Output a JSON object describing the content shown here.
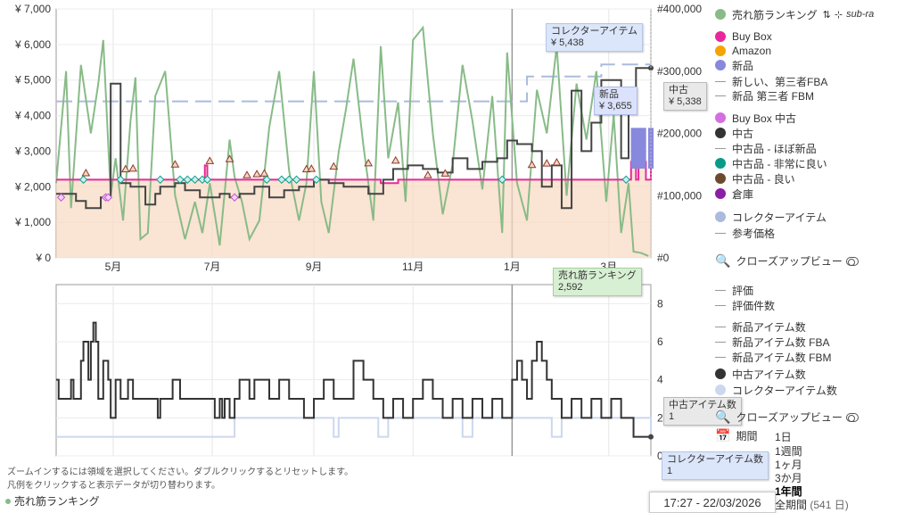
{
  "chart_data": [
    {
      "type": "line",
      "yaxis_left": {
        "ticks": [
          "¥ 0",
          "¥ 1,000",
          "¥ 2,000",
          "¥ 3,000",
          "¥ 4,000",
          "¥ 5,000",
          "¥ 6,000",
          "¥ 7,000"
        ],
        "range": [
          0,
          7000
        ]
      },
      "yaxis_right": {
        "ticks": [
          "#0",
          "#100,000",
          "#200,000",
          "#300,000",
          "#400,000"
        ],
        "range": [
          0,
          400000
        ]
      },
      "xaxis": {
        "ticks": [
          "5月",
          "7月",
          "9月",
          "11月",
          "1月",
          "3月"
        ],
        "range": [
          0,
          12.0
        ]
      },
      "tick_positions": [
        1.15,
        3.15,
        5.2,
        7.2,
        9.2,
        11.15
      ],
      "series": [
        {
          "name": "売れ筋ランキング",
          "color": "#88bb88",
          "axis": "right",
          "x": [
            0,
            0.2,
            0.3,
            0.5,
            0.7,
            0.85,
            0.95,
            1.1,
            1.2,
            1.35,
            1.5,
            1.6,
            1.7,
            1.85,
            2.0,
            2.2,
            2.4,
            2.6,
            2.8,
            2.95,
            3.1,
            3.3,
            3.5,
            3.6,
            3.75,
            3.9,
            4.1,
            4.3,
            4.5,
            4.7,
            4.9,
            5.05,
            5.2,
            5.35,
            5.5,
            5.7,
            5.85,
            6.0,
            6.2,
            6.4,
            6.55,
            6.7,
            6.9,
            7.05,
            7.2,
            7.4,
            7.6,
            7.8,
            8.0,
            8.2,
            8.4,
            8.6,
            8.8,
            9.0,
            9.1,
            9.3,
            9.5,
            9.7,
            9.9,
            10.1,
            10.3,
            10.5,
            10.7,
            10.9,
            11.1,
            11.25,
            11.4,
            11.55,
            11.65,
            11.8,
            11.95
          ],
          "y": [
            120000,
            300000,
            80000,
            310000,
            200000,
            280000,
            350000,
            100000,
            160000,
            60000,
            220000,
            290000,
            30000,
            40000,
            260000,
            300000,
            100000,
            30000,
            90000,
            40000,
            120000,
            20000,
            190000,
            130000,
            90000,
            30000,
            60000,
            210000,
            300000,
            140000,
            60000,
            120000,
            300000,
            90000,
            40000,
            170000,
            240000,
            320000,
            180000,
            60000,
            340000,
            160000,
            250000,
            90000,
            350000,
            370000,
            200000,
            70000,
            150000,
            310000,
            220000,
            110000,
            260000,
            40000,
            330000,
            120000,
            60000,
            270000,
            200000,
            340000,
            100000,
            280000,
            190000,
            300000,
            90000,
            230000,
            40000,
            120000,
            10000,
            8000,
            3000
          ]
        },
        {
          "name": "Buy Box",
          "color": "#e8289a",
          "axis": "left",
          "x": [
            0,
            2.95,
            3.0,
            3.05,
            3.1,
            6.45,
            6.55,
            6.8,
            6.9,
            11.55,
            11.6,
            11.7,
            11.75,
            11.9,
            12.0
          ],
          "y": [
            2200,
            2200,
            2600,
            2200,
            2200,
            2200,
            2100,
            2100,
            2200,
            2200,
            2700,
            2200,
            2700,
            2200,
            2700
          ]
        },
        {
          "name": "新品",
          "color": "#8888dd",
          "axis": "left",
          "x": [
            11.65,
            11.75,
            11.85,
            12.0
          ],
          "y": [
            3655,
            3655,
            3655,
            3655
          ]
        },
        {
          "name": "中古",
          "color": "#444444",
          "axis": "left",
          "x": [
            0,
            0.4,
            0.6,
            0.9,
            1.1,
            1.3,
            1.5,
            1.8,
            2.0,
            2.1,
            2.4,
            2.6,
            2.9,
            3.3,
            3.5,
            3.7,
            4.0,
            4.3,
            4.6,
            4.9,
            5.2,
            5.5,
            5.8,
            6.1,
            6.3,
            6.6,
            6.8,
            7.1,
            7.4,
            7.7,
            8.0,
            8.3,
            8.6,
            8.9,
            9.1,
            9.3,
            9.6,
            9.8,
            10.0,
            10.2,
            10.4,
            10.6,
            10.8,
            11.0,
            11.2,
            11.4,
            11.55,
            11.7,
            12.0
          ],
          "y": [
            1800,
            1600,
            1400,
            1700,
            4900,
            2100,
            2000,
            1500,
            1800,
            2000,
            2100,
            1900,
            1700,
            1800,
            1700,
            1800,
            2000,
            1700,
            1900,
            2000,
            2200,
            2100,
            2000,
            2000,
            1800,
            2200,
            2500,
            2600,
            2500,
            2400,
            2800,
            2500,
            2700,
            2800,
            3300,
            3200,
            3000,
            2000,
            2600,
            1400,
            4700,
            3000,
            3800,
            5000,
            5000,
            2800,
            4700,
            5338,
            5338
          ]
        },
        {
          "name": "コレクターアイテム",
          "color": "#aabbdd",
          "axis": "left",
          "x": [
            0,
            0.8,
            0.85,
            1.7,
            1.8,
            3.6,
            3.7,
            4.8,
            4.9,
            6.7,
            6.8,
            7.5,
            7.55,
            8.8,
            9.0,
            9.5,
            10.0,
            11.0,
            12.0
          ],
          "y": [
            4400,
            4400,
            4400,
            4400,
            4400,
            4400,
            4400,
            4400,
            4400,
            4400,
            4400,
            4400,
            4400,
            4400,
            4400,
            5100,
            5100,
            5438,
            5438
          ]
        }
      ]
    },
    {
      "type": "line",
      "yaxis": {
        "ticks": [
          "0",
          "2",
          "4",
          "6",
          "8"
        ],
        "range": [
          0,
          9
        ]
      },
      "series": [
        {
          "name": "中古アイテム数",
          "color": "#333333",
          "x": [
            0,
            0.05,
            0.3,
            0.35,
            0.5,
            0.55,
            0.65,
            0.7,
            0.75,
            0.8,
            0.85,
            0.95,
            1.05,
            1.1,
            1.2,
            1.3,
            1.45,
            1.55,
            2.05,
            2.1,
            2.35,
            2.5,
            3.2,
            3.3,
            3.35,
            3.4,
            3.5,
            3.6,
            3.7,
            3.9,
            4.0,
            4.3,
            4.5,
            4.7,
            5.0,
            5.2,
            5.4,
            5.6,
            5.8,
            6.0,
            6.2,
            6.4,
            6.6,
            6.8,
            7.0,
            7.2,
            7.4,
            7.6,
            7.8,
            8.0,
            8.2,
            8.4,
            8.6,
            8.8,
            9.0,
            9.2,
            9.3,
            9.4,
            9.5,
            9.6,
            9.7,
            9.8,
            9.9,
            10.0,
            10.2,
            10.4,
            10.6,
            10.8,
            11.0,
            11.2,
            11.4,
            11.55,
            11.65,
            12.0
          ],
          "y": [
            4,
            3,
            4,
            3,
            5,
            6,
            4,
            6,
            7,
            6,
            3,
            5,
            4,
            2,
            4,
            3,
            4,
            3,
            2,
            3,
            4,
            3,
            2,
            3,
            2,
            3,
            2,
            3,
            4,
            3,
            4,
            3,
            4,
            3,
            2,
            3,
            4,
            3,
            3,
            5,
            4,
            3,
            2,
            3,
            2,
            3,
            4,
            3,
            2,
            3,
            2,
            3,
            2,
            3,
            2,
            4,
            5,
            4,
            3,
            5,
            6,
            5,
            4,
            3,
            2,
            3,
            2,
            3,
            2,
            3,
            2,
            2,
            1,
            1
          ]
        },
        {
          "name": "コレクターアイテム数",
          "color": "#ccd8ee",
          "x": [
            0,
            1.0,
            1.1,
            3.5,
            3.6,
            5.6,
            5.7,
            6.5,
            6.7,
            8.2,
            8.4,
            10.0,
            10.2,
            12.0
          ],
          "y": [
            1,
            1,
            1,
            1,
            2,
            1,
            2,
            1,
            2,
            1,
            2,
            1,
            2,
            1
          ]
        }
      ]
    }
  ],
  "markers": {
    "triangles": [
      0.6,
      1.4,
      1.55,
      2.4,
      3.1,
      3.5,
      3.85,
      4.05,
      4.2,
      5.05,
      5.15,
      5.6,
      6.3,
      6.85,
      7.5,
      7.85,
      9.6,
      9.9,
      10.1
    ],
    "diamonds_teal": [
      0.55,
      1.3,
      2.1,
      2.5,
      2.65,
      2.8,
      2.95,
      3.05,
      4.25,
      4.55,
      4.7,
      4.85,
      5.25,
      9.0,
      11.5
    ],
    "diamonds_purple": [
      0.1,
      1.0,
      1.05,
      3.6
    ]
  },
  "legend": {
    "items": [
      {
        "label": "売れ筋ランキング",
        "color": "#88bb88",
        "style": "dot"
      },
      {
        "label": "Buy Box",
        "color": "#e8289a",
        "style": "dot"
      },
      {
        "label": "Amazon",
        "color": "#f5a300",
        "style": "dot"
      },
      {
        "label": "新品",
        "color": "#8888dd",
        "style": "dot"
      },
      {
        "label": "新しい、第三者FBA",
        "color": "#999999",
        "style": "dash"
      },
      {
        "label": "新品 第三者 FBM",
        "color": "#999999",
        "style": "dash"
      },
      {
        "label": "Buy Box 中古",
        "color": "#d46fe0",
        "style": "dot"
      },
      {
        "label": "中古",
        "color": "#333333",
        "style": "dot"
      },
      {
        "label": "中古品 - ほぼ新品",
        "color": "#999999",
        "style": "dash"
      },
      {
        "label": "中古品 - 非常に良い",
        "color": "#0a9a88",
        "style": "dot"
      },
      {
        "label": "中古品 - 良い",
        "color": "#6b4a2e",
        "style": "dot"
      },
      {
        "label": "倉庫",
        "color": "#8a1fa5",
        "style": "dot"
      },
      {
        "label": "コレクターアイテム",
        "color": "#aabbdd",
        "style": "dot"
      },
      {
        "label": "参考価格",
        "color": "#999999",
        "style": "dash"
      }
    ],
    "legend2": [
      {
        "label": "評価",
        "color": "#999999",
        "style": "dash"
      },
      {
        "label": "評価件数",
        "color": "#999999",
        "style": "dash"
      },
      {
        "label": "新品アイテム数",
        "color": "#999999",
        "style": "dash"
      },
      {
        "label": "新品アイテム数 FBA",
        "color": "#999999",
        "style": "dash"
      },
      {
        "label": "新品アイテム数 FBM",
        "color": "#999999",
        "style": "dash"
      },
      {
        "label": "中古アイテム数",
        "color": "#333333",
        "style": "dot"
      },
      {
        "label": "コレクターアイテム数",
        "color": "#ccd8ee",
        "style": "dot"
      }
    ],
    "sub_label": "sub-ra",
    "closeup": "クローズアップビュー"
  },
  "range": {
    "title": "期間",
    "options": [
      "1日",
      "1週間",
      "1ヶ月",
      "3か月",
      "1年間",
      "全期間"
    ],
    "days": "(541 日)",
    "selected": "1年間"
  },
  "tooltips": {
    "collector": {
      "title": "コレクターアイテム",
      "value": "¥ 5,438"
    },
    "used": {
      "title": "中古",
      "value": "¥ 5,338"
    },
    "new": {
      "title": "新品",
      "value": "¥ 3,655"
    },
    "rank": {
      "title": "売れ筋ランキング",
      "value": "2,592"
    },
    "used_count": {
      "title": "中古アイテム数",
      "value": "1"
    },
    "collector_count": {
      "title": "コレクターアイテム数",
      "value": "1"
    }
  },
  "hints": {
    "line1": "ズームインするには領域を選択してください。ダブルクリックするとリセットします。",
    "line2": "凡例をクリックすると表示データが切り替わります。"
  },
  "bottom_legend": "売れ筋ランキング",
  "timestamp": "17:27 - 22/03/2026"
}
